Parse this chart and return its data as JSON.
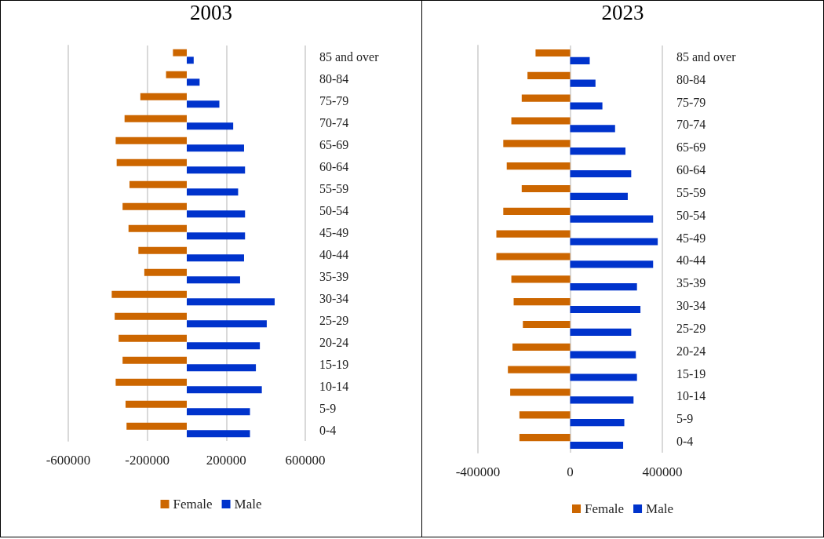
{
  "chart_data": [
    {
      "type": "bar",
      "title": "2003",
      "orientation": "horizontal",
      "categories": [
        "85 and over",
        "80-84",
        "75-79",
        "70-74",
        "65-69",
        "60-64",
        "55-59",
        "50-54",
        "45-49",
        "40-44",
        "35-39",
        "30-34",
        "25-29",
        "20-24",
        "15-19",
        "10-14",
        "5-9",
        "0-4"
      ],
      "series": [
        {
          "name": "Female",
          "color": "#cc6600",
          "values": [
            -70000,
            -105000,
            -235000,
            -315000,
            -360000,
            -355000,
            -290000,
            -325000,
            -295000,
            -245000,
            -215000,
            -380000,
            -365000,
            -345000,
            -325000,
            -360000,
            -310000,
            -305000
          ]
        },
        {
          "name": "Male",
          "color": "#0033cc",
          "values": [
            35000,
            65000,
            165000,
            235000,
            290000,
            295000,
            260000,
            295000,
            295000,
            290000,
            270000,
            445000,
            405000,
            370000,
            350000,
            380000,
            320000,
            320000
          ]
        }
      ],
      "xlim": [
        -600000,
        600000
      ],
      "xticks": [
        -600000,
        -200000,
        200000,
        600000
      ],
      "grid": "x",
      "legend": "bottom"
    },
    {
      "type": "bar",
      "title": "2023",
      "orientation": "horizontal",
      "categories": [
        "85 and over",
        "80-84",
        "75-79",
        "70-74",
        "65-69",
        "60-64",
        "55-59",
        "50-54",
        "45-49",
        "40-44",
        "35-39",
        "30-34",
        "25-29",
        "20-24",
        "15-19",
        "10-14",
        "5-9",
        "0-4"
      ],
      "series": [
        {
          "name": "Female",
          "color": "#cc6600",
          "values": [
            -150000,
            -185000,
            -210000,
            -255000,
            -290000,
            -275000,
            -210000,
            -290000,
            -320000,
            -320000,
            -255000,
            -245000,
            -205000,
            -250000,
            -270000,
            -260000,
            -220000,
            -220000
          ]
        },
        {
          "name": "Male",
          "color": "#0033cc",
          "values": [
            85000,
            110000,
            140000,
            195000,
            240000,
            265000,
            250000,
            360000,
            380000,
            360000,
            290000,
            305000,
            265000,
            285000,
            290000,
            275000,
            235000,
            230000
          ]
        }
      ],
      "xlim": [
        -400000,
        400000
      ],
      "xticks": [
        -400000,
        0,
        400000
      ],
      "grid": "x",
      "legend": "bottom"
    }
  ]
}
